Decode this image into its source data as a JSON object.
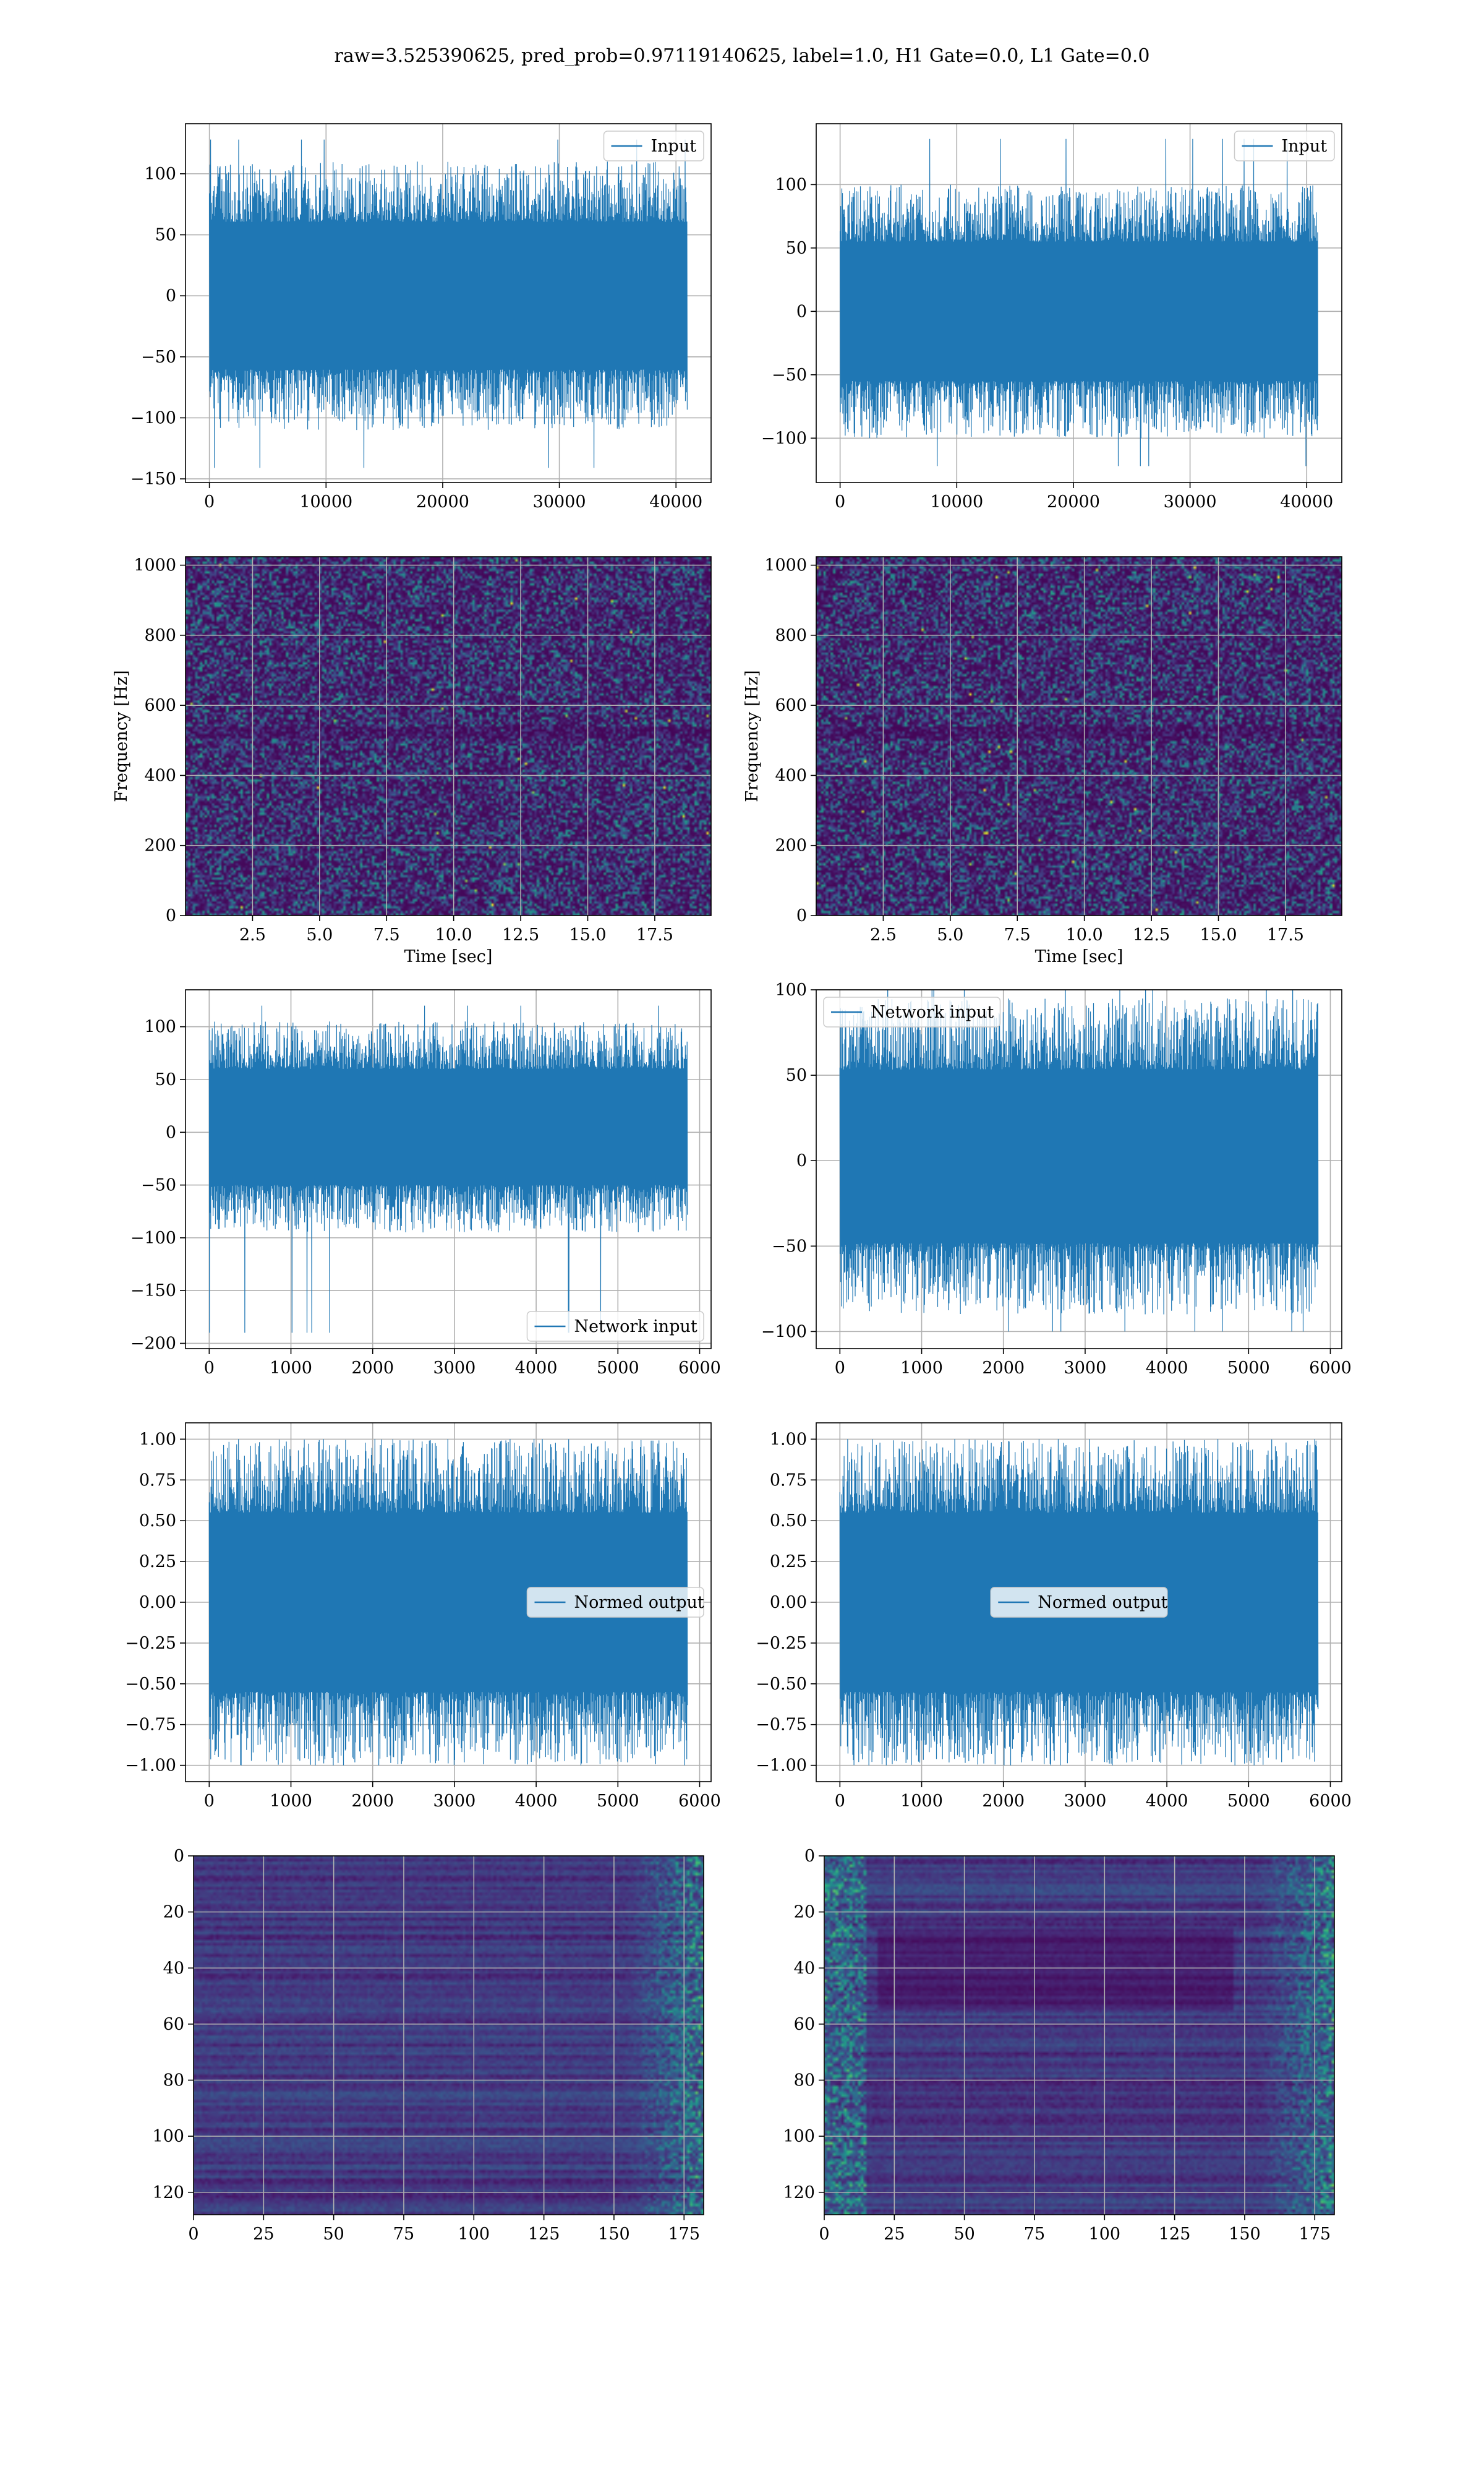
{
  "figure": {
    "suptitle": "raw=3.525390625, pred_prob=0.97119140625, label=1.0, H1 Gate=0.0, L1 Gate=0.0"
  },
  "colors": {
    "line": "#1f77b4",
    "grid": "#b0b0b0",
    "viridis": [
      "#440154",
      "#472d7b",
      "#3b528b",
      "#2c728e",
      "#21918c",
      "#28ae80",
      "#5ec962",
      "#addc30",
      "#fde725"
    ]
  },
  "chart_data": [
    {
      "id": "h1_input",
      "type": "line",
      "series": [
        {
          "name": "Input",
          "style": "dense_noise",
          "x_range": [
            0,
            40960
          ],
          "y_envelope": [
            -110,
            110
          ],
          "y_extremes": [
            -141,
            128
          ]
        }
      ],
      "xlim": [
        -2048,
        43008
      ],
      "ylim": [
        -153,
        141
      ],
      "xticks": [
        0,
        10000,
        20000,
        30000,
        40000
      ],
      "xtick_labels": [
        "0",
        "10000",
        "20000",
        "30000",
        "40000"
      ],
      "yticks": [
        -150,
        -100,
        -50,
        0,
        50,
        100
      ],
      "ytick_labels": [
        "−150",
        "−100",
        "−50",
        "0",
        "50",
        "100"
      ],
      "xlabel": "",
      "ylabel": "",
      "legend": "upper right",
      "grid": true
    },
    {
      "id": "l1_input",
      "type": "line",
      "series": [
        {
          "name": "Input",
          "style": "dense_noise",
          "x_range": [
            0,
            40960
          ],
          "y_envelope": [
            -100,
            100
          ],
          "y_extremes": [
            -122,
            136
          ]
        }
      ],
      "xlim": [
        -2048,
        43008
      ],
      "ylim": [
        -135,
        148
      ],
      "xticks": [
        0,
        10000,
        20000,
        30000,
        40000
      ],
      "xtick_labels": [
        "0",
        "10000",
        "20000",
        "30000",
        "40000"
      ],
      "yticks": [
        -100,
        -50,
        0,
        50,
        100
      ],
      "ytick_labels": [
        "−100",
        "−50",
        "0",
        "50",
        "100"
      ],
      "xlabel": "",
      "ylabel": "",
      "legend": "upper right",
      "grid": true
    },
    {
      "id": "h1_spectrogram",
      "type": "heatmap",
      "style": "spectrogram",
      "xlim": [
        0,
        19.6
      ],
      "ylim": [
        0,
        1024
      ],
      "xticks": [
        2.5,
        5.0,
        7.5,
        10.0,
        12.5,
        15.0,
        17.5
      ],
      "xtick_labels": [
        "2.5",
        "5.0",
        "7.5",
        "10.0",
        "12.5",
        "15.0",
        "17.5"
      ],
      "yticks": [
        0,
        200,
        400,
        600,
        800,
        1000
      ],
      "ytick_labels": [
        "0",
        "200",
        "400",
        "600",
        "800",
        "1000"
      ],
      "xlabel": "Time [sec]",
      "ylabel": "Frequency [Hz]",
      "grid": true
    },
    {
      "id": "l1_spectrogram",
      "type": "heatmap",
      "style": "spectrogram",
      "xlim": [
        0,
        19.6
      ],
      "ylim": [
        0,
        1024
      ],
      "xticks": [
        2.5,
        5.0,
        7.5,
        10.0,
        12.5,
        15.0,
        17.5
      ],
      "xtick_labels": [
        "2.5",
        "5.0",
        "7.5",
        "10.0",
        "12.5",
        "15.0",
        "17.5"
      ],
      "yticks": [
        0,
        200,
        400,
        600,
        800,
        1000
      ],
      "ytick_labels": [
        "0",
        "200",
        "400",
        "600",
        "800",
        "1000"
      ],
      "xlabel": "Time [sec]",
      "ylabel": "Frequency [Hz]",
      "grid": true
    },
    {
      "id": "h1_network_input",
      "type": "line",
      "series": [
        {
          "name": "Network input",
          "style": "dense_noise",
          "x_range": [
            0,
            5850
          ],
          "y_envelope": [
            -95,
            105
          ],
          "y_extremes": [
            -190,
            120
          ]
        }
      ],
      "xlim": [
        -290,
        6140
      ],
      "ylim": [
        -205,
        135
      ],
      "xticks": [
        0,
        1000,
        2000,
        3000,
        4000,
        5000,
        6000
      ],
      "xtick_labels": [
        "0",
        "1000",
        "2000",
        "3000",
        "4000",
        "5000",
        "6000"
      ],
      "yticks": [
        -200,
        -150,
        -100,
        -50,
        0,
        50,
        100
      ],
      "ytick_labels": [
        "−200",
        "−150",
        "−100",
        "−50",
        "0",
        "50",
        "100"
      ],
      "xlabel": "",
      "ylabel": "",
      "legend": "lower right",
      "grid": true
    },
    {
      "id": "l1_network_input",
      "type": "line",
      "series": [
        {
          "name": "Network input",
          "style": "dense_noise",
          "x_range": [
            0,
            5850
          ],
          "y_envelope": [
            -90,
            95
          ],
          "y_extremes": [
            -100,
            110
          ]
        }
      ],
      "xlim": [
        -290,
        6140
      ],
      "ylim": [
        -110,
        100
      ],
      "xticks": [
        0,
        1000,
        2000,
        3000,
        4000,
        5000,
        6000
      ],
      "xtick_labels": [
        "0",
        "1000",
        "2000",
        "3000",
        "4000",
        "5000",
        "6000"
      ],
      "yticks": [
        -100,
        -50,
        0,
        50,
        100
      ],
      "ytick_labels": [
        "−100",
        "−50",
        "0",
        "50",
        "100"
      ],
      "xlabel": "",
      "ylabel": "",
      "legend": "upper left",
      "grid": true
    },
    {
      "id": "h1_normed_output",
      "type": "line",
      "series": [
        {
          "name": "Normed output",
          "style": "dense_noise",
          "x_range": [
            0,
            5850
          ],
          "y_envelope": [
            -1.0,
            1.0
          ],
          "y_extremes": [
            -1.0,
            1.0
          ]
        }
      ],
      "xlim": [
        -290,
        6140
      ],
      "ylim": [
        -1.1,
        1.1
      ],
      "xticks": [
        0,
        1000,
        2000,
        3000,
        4000,
        5000,
        6000
      ],
      "xtick_labels": [
        "0",
        "1000",
        "2000",
        "3000",
        "4000",
        "5000",
        "6000"
      ],
      "yticks": [
        -1.0,
        -0.75,
        -0.5,
        -0.25,
        0.0,
        0.25,
        0.5,
        0.75,
        1.0
      ],
      "ytick_labels": [
        "−1.00",
        "−0.75",
        "−0.50",
        "−0.25",
        "0.00",
        "0.25",
        "0.50",
        "0.75",
        "1.00"
      ],
      "xlabel": "",
      "ylabel": "",
      "legend": "center right",
      "grid": true
    },
    {
      "id": "l1_normed_output",
      "type": "line",
      "series": [
        {
          "name": "Normed output",
          "style": "dense_noise",
          "x_range": [
            0,
            5850
          ],
          "y_envelope": [
            -1.0,
            1.0
          ],
          "y_extremes": [
            -1.0,
            1.0
          ]
        }
      ],
      "xlim": [
        -290,
        6140
      ],
      "ylim": [
        -1.1,
        1.1
      ],
      "xticks": [
        0,
        1000,
        2000,
        3000,
        4000,
        5000,
        6000
      ],
      "xtick_labels": [
        "0",
        "1000",
        "2000",
        "3000",
        "4000",
        "5000",
        "6000"
      ],
      "yticks": [
        -1.0,
        -0.75,
        -0.5,
        -0.25,
        0.0,
        0.25,
        0.5,
        0.75,
        1.0
      ],
      "ytick_labels": [
        "−1.00",
        "−0.75",
        "−0.50",
        "−0.25",
        "0.00",
        "0.25",
        "0.50",
        "0.75",
        "1.00"
      ],
      "xlabel": "",
      "ylabel": "",
      "legend": "center",
      "grid": true
    },
    {
      "id": "h1_feature_map",
      "type": "heatmap",
      "style": "feature_map",
      "xlim": [
        0,
        182
      ],
      "ylim": [
        128,
        0
      ],
      "xticks": [
        0,
        25,
        50,
        75,
        100,
        125,
        150,
        175
      ],
      "xtick_labels": [
        "0",
        "25",
        "50",
        "75",
        "100",
        "125",
        "150",
        "175"
      ],
      "yticks": [
        0,
        20,
        40,
        60,
        80,
        100,
        120
      ],
      "ytick_labels": [
        "0",
        "20",
        "40",
        "60",
        "80",
        "100",
        "120"
      ],
      "xlabel": "",
      "ylabel": "",
      "grid": true
    },
    {
      "id": "l1_feature_map",
      "type": "heatmap",
      "style": "feature_map",
      "xlim": [
        0,
        182
      ],
      "ylim": [
        128,
        0
      ],
      "xticks": [
        0,
        25,
        50,
        75,
        100,
        125,
        150,
        175
      ],
      "xtick_labels": [
        "0",
        "25",
        "50",
        "75",
        "100",
        "125",
        "150",
        "175"
      ],
      "yticks": [
        0,
        20,
        40,
        60,
        80,
        100,
        120
      ],
      "ytick_labels": [
        "0",
        "20",
        "40",
        "60",
        "80",
        "100",
        "120"
      ],
      "xlabel": "",
      "ylabel": "",
      "grid": true
    }
  ]
}
